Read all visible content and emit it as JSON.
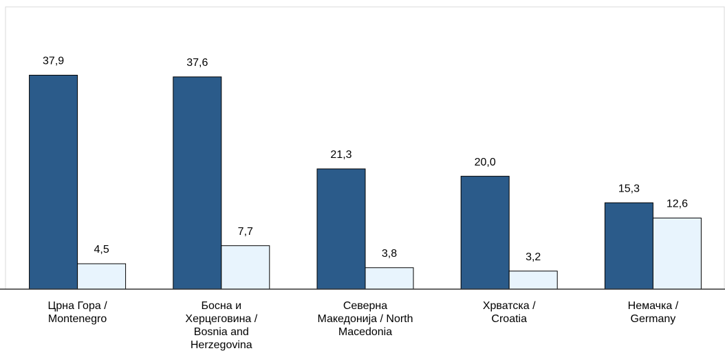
{
  "chart_data": {
    "type": "bar",
    "categories": [
      [
        "Црна Гора /",
        "Montenegro"
      ],
      [
        "Босна и",
        "Херцеговина /",
        "Bosnia and",
        "Herzegovina"
      ],
      [
        "Северна",
        "Македонија  / North",
        "Macedonia"
      ],
      [
        "Хрватска /",
        "Croatia"
      ],
      [
        "Немачка  /",
        "Germany"
      ]
    ],
    "series": [
      {
        "color": "#2b5b8a",
        "values": [
          37.9,
          37.6,
          21.3,
          20.0,
          15.3
        ],
        "value_labels": [
          "37,9",
          "37,6",
          "21,3",
          "20,0",
          "15,3"
        ]
      },
      {
        "color": "#e8f4fd",
        "values": [
          4.5,
          7.7,
          3.8,
          3.2,
          12.6
        ],
        "value_labels": [
          "4,5",
          "7,7",
          "3,8",
          "3,2",
          "12,6"
        ]
      }
    ],
    "ylim": [
      0,
      50
    ]
  }
}
